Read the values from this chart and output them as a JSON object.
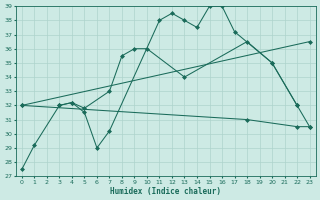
{
  "xlabel": "Humidex (Indice chaleur)",
  "bg_color": "#cdeae4",
  "grid_color": "#aed4cc",
  "line_color": "#1a6b5a",
  "xlim": [
    -0.5,
    23.5
  ],
  "ylim": [
    27,
    39
  ],
  "xticks": [
    0,
    1,
    2,
    3,
    4,
    5,
    6,
    7,
    8,
    9,
    10,
    11,
    12,
    13,
    14,
    15,
    16,
    17,
    18,
    19,
    20,
    21,
    22,
    23
  ],
  "yticks": [
    27,
    28,
    29,
    30,
    31,
    32,
    33,
    34,
    35,
    36,
    37,
    38,
    39
  ],
  "line1_x": [
    0,
    1,
    3,
    4,
    5,
    6,
    7,
    11,
    12,
    13,
    14,
    15,
    16,
    17,
    20,
    22,
    23
  ],
  "line1_y": [
    27.5,
    29.2,
    32.0,
    32.2,
    31.5,
    29.0,
    30.2,
    38.0,
    38.5,
    38.0,
    37.5,
    39.0,
    39.0,
    37.2,
    35.0,
    32.0,
    30.5
  ],
  "line2_x": [
    3,
    4,
    5,
    7,
    8,
    9,
    10,
    13,
    18,
    20,
    22
  ],
  "line2_y": [
    32.0,
    32.2,
    31.8,
    33.0,
    35.5,
    36.0,
    36.0,
    34.0,
    36.5,
    35.0,
    32.0
  ],
  "line3_x": [
    0,
    23
  ],
  "line3_y": [
    32.0,
    36.5
  ],
  "line4_x": [
    0,
    18,
    22,
    23
  ],
  "line4_y": [
    32.0,
    31.0,
    30.5,
    30.5
  ]
}
